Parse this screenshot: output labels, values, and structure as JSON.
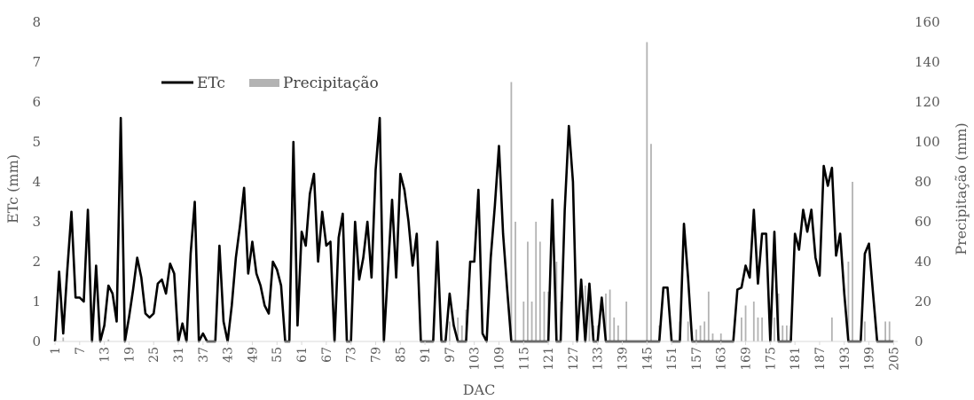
{
  "chart_data": {
    "type": "line",
    "xlabel": "DAC",
    "ylabel_left": "ETc (mm)",
    "ylabel_right": "Precipitação (mm)",
    "ylim_left": [
      0,
      8
    ],
    "ylim_right": [
      0,
      160
    ],
    "yticks_left": [
      "0",
      "1",
      "2",
      "3",
      "4",
      "5",
      "6",
      "7",
      "8"
    ],
    "yticks_right": [
      "0",
      "20",
      "40",
      "60",
      "80",
      "100",
      "120",
      "140",
      "160"
    ],
    "xlim": [
      1,
      206
    ],
    "xticks": [
      "1",
      "7",
      "13",
      "19",
      "25",
      "31",
      "37",
      "43",
      "49",
      "55",
      "61",
      "67",
      "73",
      "79",
      "85",
      "91",
      "97",
      "103",
      "109",
      "115",
      "121",
      "127",
      "133",
      "139",
      "145",
      "151",
      "157",
      "163",
      "169",
      "175",
      "181",
      "187",
      "193",
      "199",
      "205"
    ],
    "legend": {
      "position": "top-left",
      "entries": [
        "ETc",
        "Precipitação"
      ]
    },
    "colors": {
      "ETc": "#000000",
      "Precipitação": "#b3b3b3"
    },
    "series": [
      {
        "name": "ETc",
        "type": "line",
        "axis": "left",
        "points": [
          [
            1,
            0
          ],
          [
            2,
            1.75
          ],
          [
            3,
            0.2
          ],
          [
            4,
            1.8
          ],
          [
            5,
            3.25
          ],
          [
            6,
            1.1
          ],
          [
            7,
            1.1
          ],
          [
            8,
            1.0
          ],
          [
            9,
            3.3
          ],
          [
            10,
            0
          ],
          [
            11,
            1.9
          ],
          [
            12,
            0
          ],
          [
            13,
            0.4
          ],
          [
            14,
            1.4
          ],
          [
            15,
            1.2
          ],
          [
            16,
            0.5
          ],
          [
            17,
            5.6
          ],
          [
            18,
            0
          ],
          [
            19,
            0.6
          ],
          [
            20,
            1.3
          ],
          [
            21,
            2.1
          ],
          [
            22,
            1.6
          ],
          [
            23,
            0.7
          ],
          [
            24,
            0.6
          ],
          [
            25,
            0.7
          ],
          [
            26,
            1.45
          ],
          [
            27,
            1.55
          ],
          [
            28,
            1.2
          ],
          [
            29,
            1.95
          ],
          [
            30,
            1.7
          ],
          [
            31,
            0
          ],
          [
            32,
            0.45
          ],
          [
            33,
            0
          ],
          [
            34,
            2.2
          ],
          [
            35,
            3.5
          ],
          [
            36,
            0
          ],
          [
            37,
            0.2
          ],
          [
            38,
            0
          ],
          [
            39,
            0
          ],
          [
            40,
            0
          ],
          [
            41,
            2.4
          ],
          [
            42,
            0.5
          ],
          [
            43,
            0
          ],
          [
            44,
            0.9
          ],
          [
            45,
            2.1
          ],
          [
            46,
            2.9
          ],
          [
            47,
            3.85
          ],
          [
            48,
            1.7
          ],
          [
            49,
            2.5
          ],
          [
            50,
            1.7
          ],
          [
            51,
            1.4
          ],
          [
            52,
            0.9
          ],
          [
            53,
            0.7
          ],
          [
            54,
            2.0
          ],
          [
            55,
            1.8
          ],
          [
            56,
            1.4
          ],
          [
            57,
            0
          ],
          [
            58,
            0
          ],
          [
            59,
            5.0
          ],
          [
            60,
            0.4
          ],
          [
            61,
            2.75
          ],
          [
            62,
            2.4
          ],
          [
            63,
            3.7
          ],
          [
            64,
            4.2
          ],
          [
            65,
            2.0
          ],
          [
            66,
            3.25
          ],
          [
            67,
            2.4
          ],
          [
            68,
            2.5
          ],
          [
            69,
            0
          ],
          [
            70,
            2.6
          ],
          [
            71,
            3.2
          ],
          [
            72,
            0
          ],
          [
            73,
            0
          ],
          [
            74,
            3.0
          ],
          [
            75,
            1.55
          ],
          [
            76,
            2.1
          ],
          [
            77,
            3.0
          ],
          [
            78,
            1.6
          ],
          [
            79,
            4.3
          ],
          [
            80,
            5.6
          ],
          [
            81,
            0
          ],
          [
            82,
            1.8
          ],
          [
            83,
            3.55
          ],
          [
            84,
            1.6
          ],
          [
            85,
            4.2
          ],
          [
            86,
            3.8
          ],
          [
            87,
            3.0
          ],
          [
            88,
            1.9
          ],
          [
            89,
            2.7
          ],
          [
            90,
            0
          ],
          [
            91,
            0
          ],
          [
            92,
            0
          ],
          [
            93,
            0
          ],
          [
            94,
            2.5
          ],
          [
            95,
            0
          ],
          [
            96,
            0
          ],
          [
            97,
            1.2
          ],
          [
            98,
            0.4
          ],
          [
            99,
            0
          ],
          [
            100,
            0
          ],
          [
            101,
            0
          ],
          [
            102,
            2.0
          ],
          [
            103,
            2.0
          ],
          [
            104,
            3.8
          ],
          [
            105,
            0.2
          ],
          [
            106,
            0
          ],
          [
            107,
            2.1
          ],
          [
            108,
            3.4
          ],
          [
            109,
            4.9
          ],
          [
            110,
            2.7
          ],
          [
            111,
            1.3
          ],
          [
            112,
            0
          ],
          [
            113,
            0
          ],
          [
            114,
            0
          ],
          [
            115,
            0
          ],
          [
            116,
            0
          ],
          [
            117,
            0
          ],
          [
            118,
            0
          ],
          [
            119,
            0
          ],
          [
            120,
            0
          ],
          [
            121,
            0
          ],
          [
            122,
            3.55
          ],
          [
            123,
            0
          ],
          [
            124,
            0
          ],
          [
            125,
            3.3
          ],
          [
            126,
            5.4
          ],
          [
            127,
            4.0
          ],
          [
            128,
            0
          ],
          [
            129,
            1.55
          ],
          [
            130,
            0
          ],
          [
            131,
            1.45
          ],
          [
            132,
            0
          ],
          [
            133,
            0
          ],
          [
            134,
            1.1
          ],
          [
            135,
            0
          ],
          [
            136,
            0
          ],
          [
            137,
            0
          ],
          [
            138,
            0
          ],
          [
            139,
            0
          ],
          [
            140,
            0
          ],
          [
            141,
            0
          ],
          [
            142,
            0
          ],
          [
            143,
            0
          ],
          [
            144,
            0
          ],
          [
            145,
            0
          ],
          [
            146,
            0
          ],
          [
            147,
            0
          ],
          [
            148,
            0
          ],
          [
            149,
            1.35
          ],
          [
            150,
            1.35
          ],
          [
            151,
            0
          ],
          [
            152,
            0
          ],
          [
            153,
            0
          ],
          [
            154,
            2.95
          ],
          [
            155,
            1.6
          ],
          [
            156,
            0
          ],
          [
            157,
            0
          ],
          [
            158,
            0
          ],
          [
            159,
            0
          ],
          [
            160,
            0
          ],
          [
            161,
            0
          ],
          [
            162,
            0
          ],
          [
            163,
            0
          ],
          [
            164,
            0
          ],
          [
            165,
            0
          ],
          [
            166,
            0
          ],
          [
            167,
            1.3
          ],
          [
            168,
            1.35
          ],
          [
            169,
            1.9
          ],
          [
            170,
            1.6
          ],
          [
            171,
            3.3
          ],
          [
            172,
            1.45
          ],
          [
            173,
            2.7
          ],
          [
            174,
            2.7
          ],
          [
            175,
            0
          ],
          [
            176,
            2.75
          ],
          [
            177,
            0
          ],
          [
            178,
            0
          ],
          [
            179,
            0
          ],
          [
            180,
            0
          ],
          [
            181,
            2.7
          ],
          [
            182,
            2.3
          ],
          [
            183,
            3.3
          ],
          [
            184,
            2.75
          ],
          [
            185,
            3.3
          ],
          [
            186,
            2.1
          ],
          [
            187,
            1.65
          ],
          [
            188,
            4.4
          ],
          [
            189,
            3.9
          ],
          [
            190,
            4.35
          ],
          [
            191,
            2.15
          ],
          [
            192,
            2.7
          ],
          [
            193,
            1.2
          ],
          [
            194,
            0
          ],
          [
            195,
            0
          ],
          [
            196,
            0
          ],
          [
            197,
            0
          ],
          [
            198,
            2.2
          ],
          [
            199,
            2.45
          ],
          [
            200,
            1.2
          ],
          [
            201,
            0
          ],
          [
            202,
            0
          ],
          [
            203,
            0
          ],
          [
            204,
            0
          ],
          [
            205,
            0
          ]
        ]
      },
      {
        "name": "Precipitação",
        "type": "bar",
        "axis": "right",
        "points": [
          [
            3,
            2
          ],
          [
            14,
            1
          ],
          [
            97,
            10
          ],
          [
            99,
            12
          ],
          [
            100,
            8
          ],
          [
            101,
            16
          ],
          [
            112,
            130
          ],
          [
            113,
            60
          ],
          [
            115,
            20
          ],
          [
            116,
            50
          ],
          [
            117,
            20
          ],
          [
            118,
            60
          ],
          [
            119,
            50
          ],
          [
            120,
            25
          ],
          [
            121,
            25
          ],
          [
            123,
            40
          ],
          [
            124,
            20
          ],
          [
            128,
            12
          ],
          [
            130,
            28
          ],
          [
            131,
            28
          ],
          [
            132,
            8
          ],
          [
            133,
            8
          ],
          [
            135,
            24
          ],
          [
            136,
            26
          ],
          [
            137,
            12
          ],
          [
            138,
            8
          ],
          [
            140,
            20
          ],
          [
            145,
            150
          ],
          [
            146,
            99
          ],
          [
            148,
            8
          ],
          [
            153,
            10
          ],
          [
            155,
            10
          ],
          [
            157,
            6
          ],
          [
            158,
            8
          ],
          [
            159,
            10
          ],
          [
            160,
            25
          ],
          [
            161,
            4
          ],
          [
            163,
            4
          ],
          [
            168,
            12
          ],
          [
            169,
            18
          ],
          [
            171,
            20
          ],
          [
            172,
            12
          ],
          [
            173,
            12
          ],
          [
            175,
            12
          ],
          [
            176,
            12
          ],
          [
            177,
            24
          ],
          [
            178,
            8
          ],
          [
            179,
            8
          ],
          [
            180,
            8
          ],
          [
            190,
            12
          ],
          [
            194,
            40
          ],
          [
            195,
            80
          ],
          [
            198,
            10
          ],
          [
            203,
            10
          ],
          [
            204,
            10
          ]
        ]
      }
    ]
  }
}
